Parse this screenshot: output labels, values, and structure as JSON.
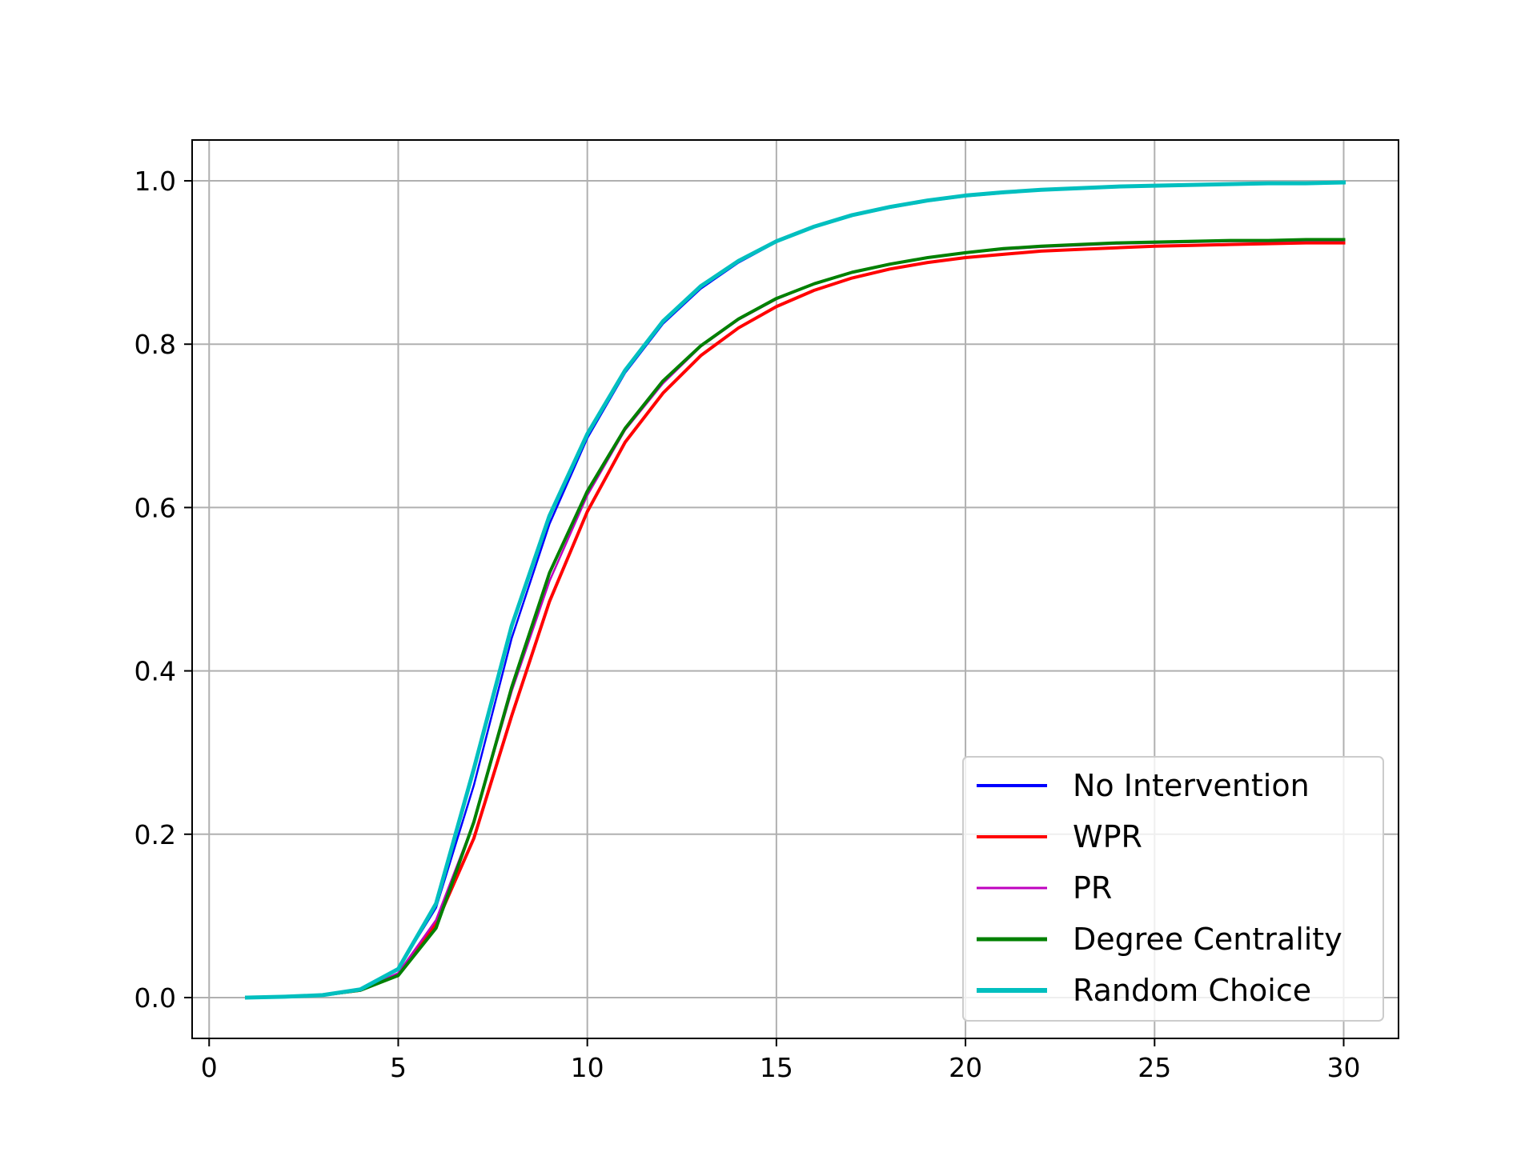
{
  "chart_data": {
    "type": "line",
    "title": "",
    "xlabel": "",
    "ylabel": "",
    "xlim": [
      -0.45,
      31.45
    ],
    "ylim": [
      -0.05,
      1.05
    ],
    "xticks": [
      0,
      5,
      10,
      15,
      20,
      25,
      30
    ],
    "yticks": [
      0.0,
      0.2,
      0.4,
      0.6,
      0.8,
      1.0
    ],
    "xtick_labels": [
      "0",
      "5",
      "10",
      "15",
      "20",
      "25",
      "30"
    ],
    "ytick_labels": [
      "0.0",
      "0.2",
      "0.4",
      "0.6",
      "0.8",
      "1.0"
    ],
    "grid": true,
    "legend_position": "lower-right",
    "x": [
      1,
      2,
      3,
      4,
      5,
      6,
      7,
      8,
      9,
      10,
      11,
      12,
      13,
      14,
      15,
      16,
      17,
      18,
      19,
      20,
      21,
      22,
      23,
      24,
      25,
      26,
      27,
      28,
      29,
      30
    ],
    "series": [
      {
        "name": "No Intervention",
        "color": "#0000ff",
        "values": [
          0.0,
          0.001,
          0.003,
          0.01,
          0.035,
          0.11,
          0.26,
          0.44,
          0.58,
          0.685,
          0.765,
          0.825,
          0.868,
          0.9,
          0.925,
          0.943,
          0.957,
          0.967,
          0.975,
          0.981,
          0.985,
          0.989,
          0.991,
          0.993,
          0.994,
          0.995,
          0.996,
          0.997,
          0.997,
          0.998
        ]
      },
      {
        "name": "WPR",
        "color": "#ff0000",
        "values": [
          0.0,
          0.001,
          0.003,
          0.009,
          0.028,
          0.09,
          0.195,
          0.345,
          0.485,
          0.595,
          0.68,
          0.74,
          0.786,
          0.82,
          0.846,
          0.866,
          0.881,
          0.892,
          0.9,
          0.906,
          0.91,
          0.914,
          0.916,
          0.918,
          0.92,
          0.921,
          0.922,
          0.923,
          0.924,
          0.924
        ]
      },
      {
        "name": "PR",
        "color": "#bf00bf",
        "values": [
          0.0,
          0.001,
          0.003,
          0.009,
          0.03,
          0.095,
          0.215,
          0.375,
          0.51,
          0.615,
          0.695,
          0.752,
          0.797,
          0.83,
          0.855,
          0.874,
          0.888,
          0.898,
          0.906,
          0.912,
          0.916,
          0.919,
          0.921,
          0.923,
          0.924,
          0.925,
          0.926,
          0.926,
          0.927,
          0.927
        ]
      },
      {
        "name": "Degree Centrality",
        "color": "#008000",
        "values": [
          0.0,
          0.001,
          0.003,
          0.009,
          0.027,
          0.085,
          0.215,
          0.38,
          0.52,
          0.62,
          0.697,
          0.755,
          0.798,
          0.831,
          0.856,
          0.874,
          0.888,
          0.898,
          0.906,
          0.912,
          0.917,
          0.92,
          0.922,
          0.924,
          0.925,
          0.926,
          0.927,
          0.927,
          0.928,
          0.928
        ]
      },
      {
        "name": "Random Choice",
        "color": "#00bfbf",
        "values": [
          0.0,
          0.001,
          0.003,
          0.01,
          0.035,
          0.115,
          0.28,
          0.455,
          0.59,
          0.69,
          0.768,
          0.828,
          0.871,
          0.902,
          0.926,
          0.944,
          0.958,
          0.968,
          0.976,
          0.982,
          0.986,
          0.989,
          0.991,
          0.993,
          0.994,
          0.995,
          0.996,
          0.997,
          0.997,
          0.998
        ]
      }
    ]
  }
}
